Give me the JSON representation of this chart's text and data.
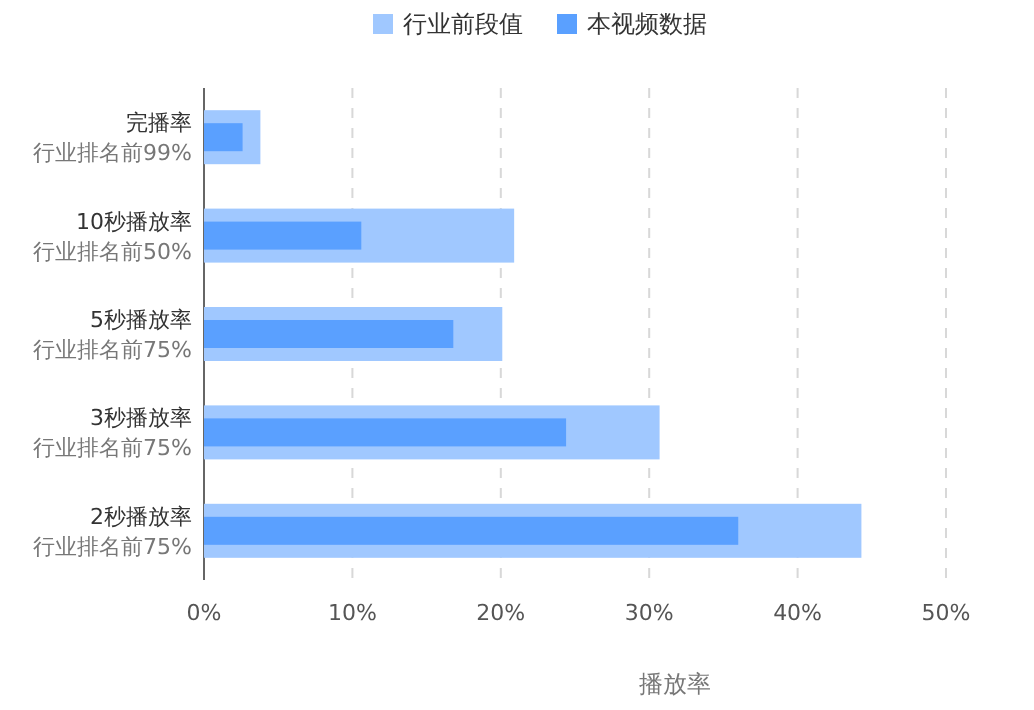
{
  "chart_data": {
    "type": "bar",
    "orientation": "horizontal",
    "xlabel": "播放率",
    "categories": [
      "完播率",
      "10秒播放率",
      "5秒播放率",
      "3秒播放率",
      "2秒播放率"
    ],
    "annotations": [
      "行业排名前99%",
      "行业排名前50%",
      "行业排名前75%",
      "行业排名前75%",
      "行业排名前75%"
    ],
    "series": [
      {
        "name": "行业前段值",
        "color": "#a0c8ff",
        "values": [
          3.8,
          20.9,
          20.1,
          30.7,
          44.3
        ]
      },
      {
        "name": "本视频数据",
        "color": "#5aa0ff",
        "values": [
          2.6,
          10.6,
          16.8,
          24.4,
          36.0
        ]
      }
    ],
    "xlim": [
      0,
      50
    ],
    "xticks": [
      {
        "value": 0,
        "label": "0%"
      },
      {
        "value": 10,
        "label": "10%"
      },
      {
        "value": 20,
        "label": "20%"
      },
      {
        "value": 30,
        "label": "30%"
      },
      {
        "value": 40,
        "label": "40%"
      },
      {
        "value": 50,
        "label": "50%"
      }
    ],
    "grid": "x",
    "legend": "top"
  }
}
